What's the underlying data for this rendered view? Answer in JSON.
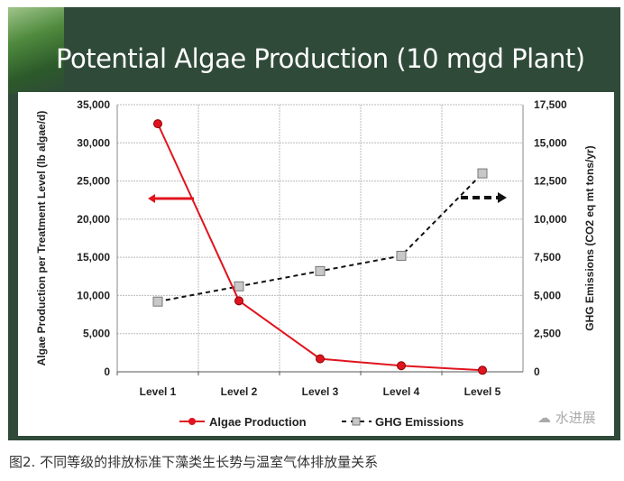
{
  "chart_data": {
    "type": "line",
    "title": "Potential Algae Production (10 mgd Plant)",
    "categories": [
      "Level 1",
      "Level 2",
      "Level 3",
      "Level 4",
      "Level 5"
    ],
    "ylabel": "Algae Production per Treatment Level (lb algae/d)",
    "y2label": "GHG Emissions (CO2 eq mt tons/yr)",
    "ylim": [
      0,
      35000
    ],
    "y2lim": [
      0,
      17500
    ],
    "yticks": [
      "0",
      "5,000",
      "10,000",
      "15,000",
      "20,000",
      "25,000",
      "30,000",
      "35,000"
    ],
    "y2ticks": [
      "0",
      "2,500",
      "5,000",
      "7,500",
      "10,000",
      "12,500",
      "15,000",
      "17,500"
    ],
    "grid": true,
    "legend_position": "bottom",
    "series": [
      {
        "name": "Algae Production",
        "axis": "left",
        "values": [
          32500,
          9300,
          1700,
          800,
          200
        ],
        "color": "#e0141e",
        "style": "solid",
        "marker": "circle"
      },
      {
        "name": "GHG Emissions",
        "axis": "right",
        "values": [
          4600,
          5600,
          6600,
          7600,
          13000
        ],
        "color": "#111111",
        "style": "dashed",
        "marker": "square"
      }
    ]
  },
  "caption": "图2. 不同等级的排放标准下藻类生长势与温室气体排放量关系",
  "watermark": "水进展"
}
